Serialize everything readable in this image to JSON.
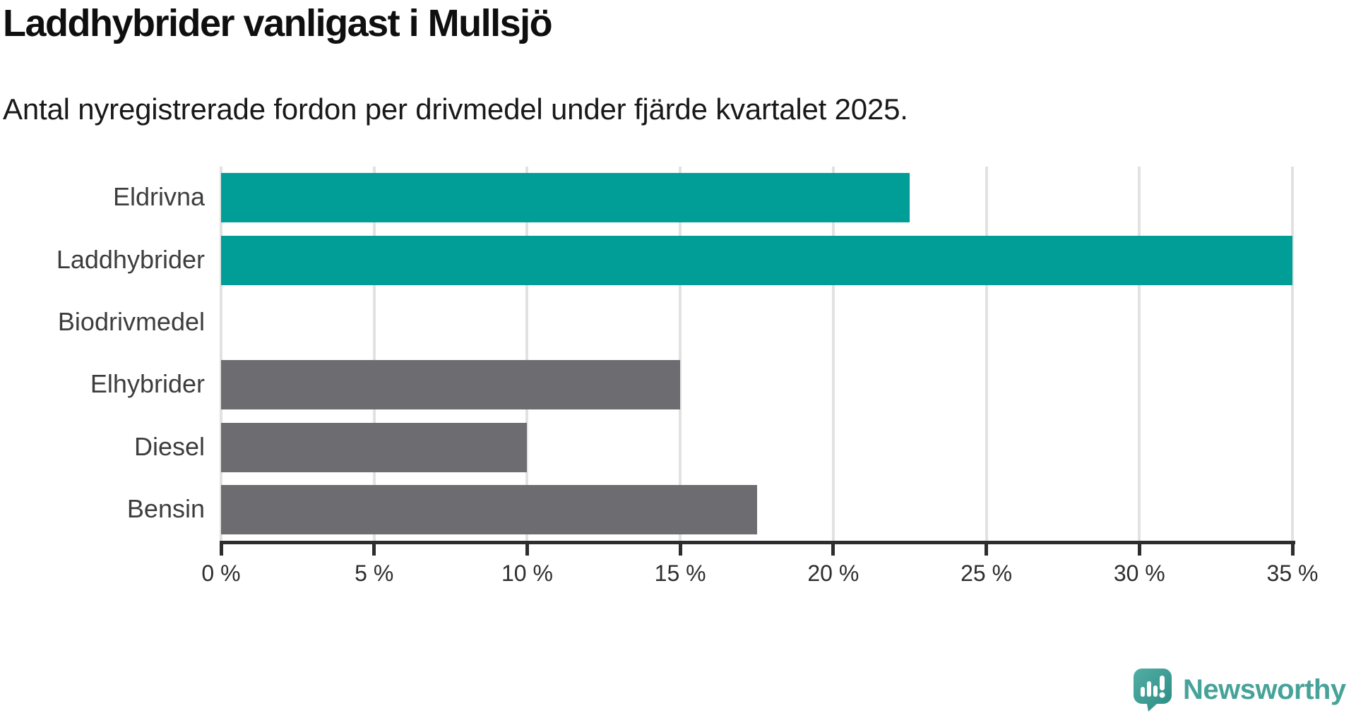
{
  "title": "Laddhybrider vanligast i Mullsjö",
  "subtitle": "Antal nyregistrerade fordon per drivmedel under fjärde kvartalet 2025.",
  "chart_data": {
    "type": "bar",
    "orientation": "horizontal",
    "title": "Laddhybrider vanligast i Mullsjö",
    "subtitle": "Antal nyregistrerade fordon per drivmedel under fjärde kvartalet 2025.",
    "categories": [
      "Eldrivna",
      "Laddhybrider",
      "Biodrivmedel",
      "Elhybrider",
      "Diesel",
      "Bensin"
    ],
    "values": [
      22.5,
      35,
      0,
      15,
      10,
      17.5
    ],
    "unit": "%",
    "bar_colors": [
      "#009e97",
      "#009e97",
      "#009e97",
      "#6c6c71",
      "#6c6c71",
      "#6c6c71"
    ],
    "x_tick_labels": [
      "0 %",
      "5 %",
      "10 %",
      "15 %",
      "20 %",
      "25 %",
      "30 %",
      "35 %"
    ],
    "x_tick_values": [
      0,
      5,
      10,
      15,
      20,
      25,
      30,
      35
    ],
    "xlim": [
      0,
      35
    ],
    "grid": true,
    "gridline_color": "#e2e2e2",
    "axis_color": "#2d2d2d"
  },
  "colors": {
    "highlight_teal": "#009e97",
    "neutral_gray": "#6c6c71",
    "axis": "#2d2d2d",
    "gridline": "#e2e2e2",
    "logo_teal": "#47a39a"
  },
  "logo": {
    "text": "Newsworthy",
    "icon": "newsworthy-speech-bubble-chart-icon"
  }
}
